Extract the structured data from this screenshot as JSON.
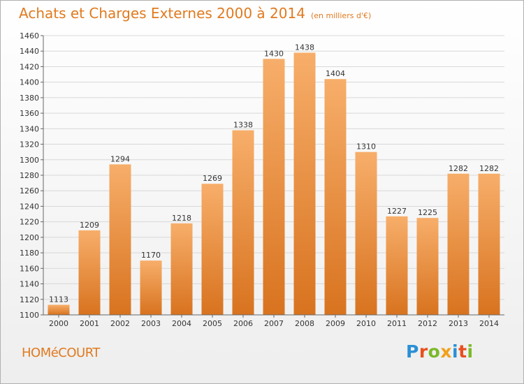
{
  "header": {
    "title": "Achats et Charges Externes 2000 à 2014",
    "unit": "(en milliers d'€)"
  },
  "footer": {
    "city": "HOMéCOURT",
    "logo_text": "Proxiti"
  },
  "colors": {
    "title": "#e07a1f",
    "bar_top": "#f7ae6a",
    "bar_bottom": "#d8731f",
    "grid": "#d8d8d8"
  },
  "chart_data": {
    "type": "bar",
    "title": "Achats et Charges Externes 2000 à 2014",
    "subtitle": "(en milliers d'€)",
    "categories": [
      "2000",
      "2001",
      "2002",
      "2003",
      "2004",
      "2005",
      "2006",
      "2007",
      "2008",
      "2009",
      "2010",
      "2011",
      "2012",
      "2013",
      "2014"
    ],
    "values": [
      1113,
      1209,
      1294,
      1170,
      1218,
      1269,
      1338,
      1430,
      1438,
      1404,
      1310,
      1227,
      1225,
      1282,
      1282
    ],
    "ylim": [
      1100,
      1460
    ],
    "yticks": [
      1100,
      1120,
      1140,
      1160,
      1180,
      1200,
      1220,
      1240,
      1260,
      1280,
      1300,
      1320,
      1340,
      1360,
      1380,
      1400,
      1420,
      1440,
      1460
    ],
    "grid": true
  }
}
